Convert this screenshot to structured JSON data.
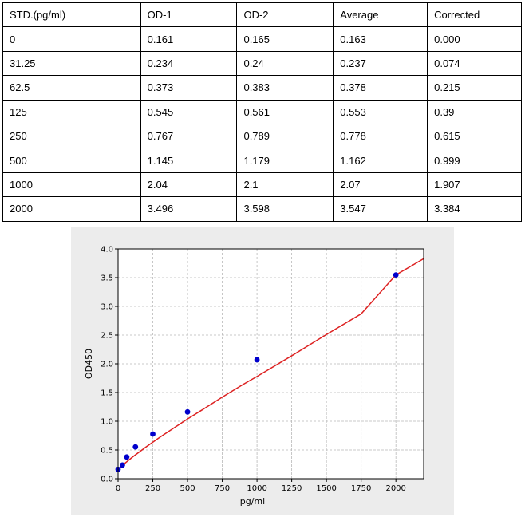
{
  "table": {
    "headers": [
      "STD.(pg/ml)",
      "OD-1",
      "OD-2",
      "Average",
      "Corrected"
    ],
    "rows": [
      [
        "0",
        "0.161",
        "0.165",
        "0.163",
        "0.000"
      ],
      [
        "31.25",
        "0.234",
        "0.24",
        "0.237",
        "0.074"
      ],
      [
        "62.5",
        "0.373",
        "0.383",
        "0.378",
        "0.215"
      ],
      [
        "125",
        "0.545",
        "0.561",
        "0.553",
        "0.39"
      ],
      [
        "250",
        "0.767",
        "0.789",
        "0.778",
        "0.615"
      ],
      [
        "500",
        "1.145",
        "1.179",
        "1.162",
        "0.999"
      ],
      [
        "1000",
        "2.04",
        "2.1",
        "2.07",
        "1.907"
      ],
      [
        "2000",
        "3.496",
        "3.598",
        "3.547",
        "3.384"
      ]
    ]
  },
  "chart_data": {
    "type": "scatter",
    "xlabel": "pg/ml",
    "ylabel": "OD450",
    "xlim": [
      0,
      2200
    ],
    "ylim": [
      0,
      4.0
    ],
    "xticks": [
      0,
      250,
      500,
      750,
      1000,
      1250,
      1500,
      1750,
      2000
    ],
    "yticks": [
      0.0,
      0.5,
      1.0,
      1.5,
      2.0,
      2.5,
      3.0,
      3.5,
      4.0
    ],
    "grid": true,
    "series": [
      {
        "kind": "points",
        "color": "#0000cc",
        "x": [
          0,
          31.25,
          62.5,
          125,
          250,
          500,
          1000,
          2000
        ],
        "y": [
          0.163,
          0.237,
          0.378,
          0.553,
          0.778,
          1.162,
          2.07,
          3.547
        ]
      },
      {
        "kind": "fitted-curve",
        "color": "#dd2222",
        "x": [
          0,
          25,
          50,
          100,
          150,
          200,
          300,
          400,
          500,
          600,
          750,
          900,
          1000,
          1250,
          1500,
          1750,
          2000,
          2200
        ],
        "y": [
          0.16,
          0.22,
          0.27,
          0.37,
          0.46,
          0.55,
          0.72,
          0.88,
          1.04,
          1.19,
          1.42,
          1.64,
          1.78,
          2.14,
          2.51,
          2.87,
          3.547,
          3.83
        ]
      }
    ],
    "colors": {
      "grid": "#b8b8b8",
      "axis": "#000000",
      "plot_bg": "#ffffff",
      "panel_bg": "#ececec"
    }
  }
}
